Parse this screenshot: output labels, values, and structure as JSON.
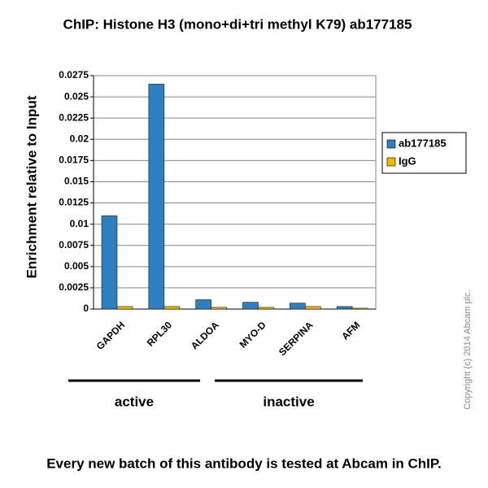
{
  "chart_data": {
    "type": "bar",
    "title": "ChIP: Histone H3 (mono+di+tri methyl K79) ab177185",
    "y_label": "Enrichment  relative to Input",
    "categories": [
      "GAPDH",
      "RPL30",
      "ALDOA",
      "MYO-D",
      "SERPINA",
      "AFM"
    ],
    "series": [
      {
        "name": "ab177185",
        "color": "#2e7fc0",
        "values": [
          0.011,
          0.0265,
          0.0011,
          0.0008,
          0.0007,
          0.0003
        ]
      },
      {
        "name": "IgG",
        "color": "#f2b800",
        "values": [
          0.0003,
          0.0003,
          0.0002,
          0.0002,
          0.0003,
          0.0001
        ]
      }
    ],
    "ylim": [
      0,
      0.0275
    ],
    "yticks": [
      0,
      0.0025,
      0.005,
      0.0075,
      0.01,
      0.0125,
      0.015,
      0.0175,
      0.02,
      0.0225,
      0.025,
      0.0275
    ],
    "grid": true,
    "legend": "right",
    "group_labels": [
      "active",
      "inactive"
    ],
    "footer": "Every new batch of this antibody is tested at Abcam in ChIP.",
    "copyright": "Copyright (c) 2014 Abcam plc."
  }
}
